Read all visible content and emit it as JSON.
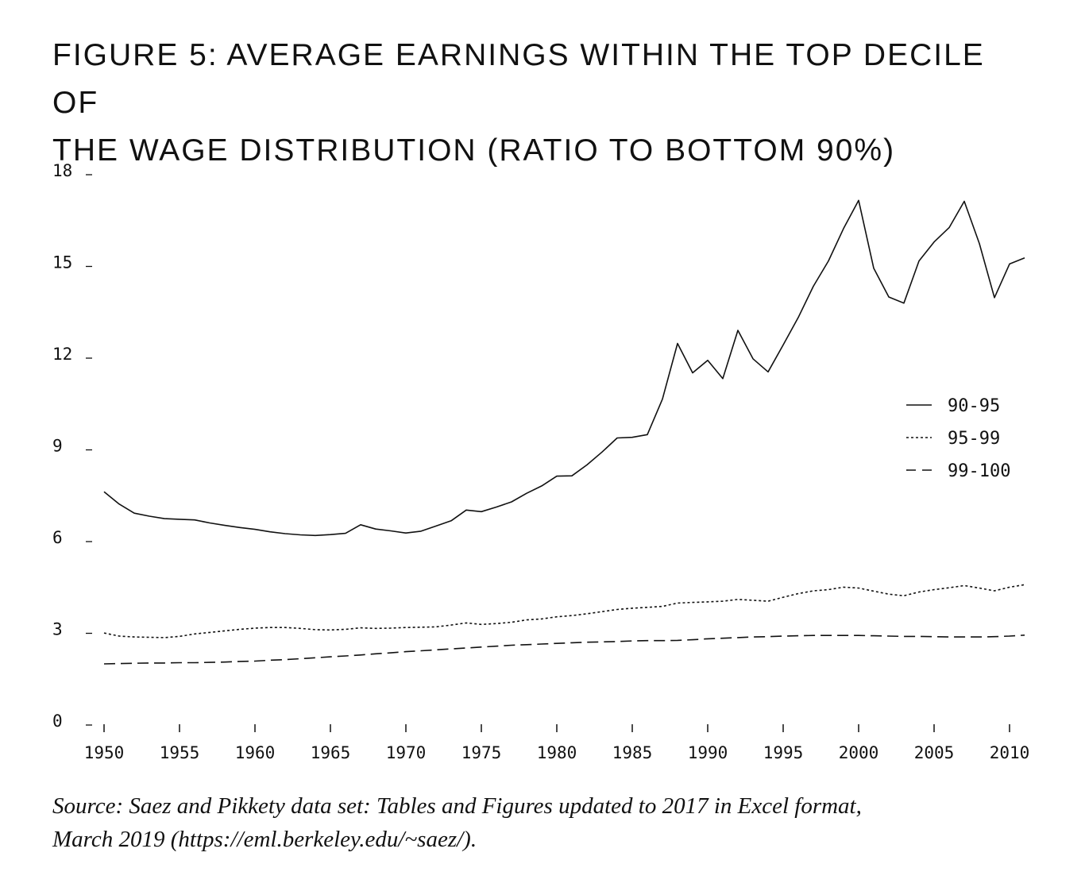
{
  "figure": {
    "title_line1": "FIGURE 5: AVERAGE EARNINGS WITHIN THE TOP DECILE OF",
    "title_line2": "THE WAGE DISTRIBUTION (RATIO TO BOTTOM 90%)"
  },
  "source": {
    "line1": "Source: Saez and Pikkety data set: Tables and Figures updated to 2017 in Excel format,",
    "line2": "March 2019 (https://eml.berkeley.edu/~saez/)."
  },
  "chart_data": {
    "type": "line",
    "title": "FIGURE 5: AVERAGE EARNINGS WITHIN THE TOP DECILE OF THE WAGE DISTRIBUTION (RATIO TO BOTTOM 90%)",
    "xlabel": "",
    "ylabel": "",
    "xlim": [
      1950,
      2011
    ],
    "ylim": [
      0,
      18
    ],
    "x_ticks": [
      1950,
      1955,
      1960,
      1965,
      1970,
      1975,
      1980,
      1985,
      1990,
      1995,
      2000,
      2005,
      2010
    ],
    "y_ticks": [
      0,
      3,
      6,
      9,
      12,
      15,
      18
    ],
    "grid": false,
    "legend_position": "right",
    "x": [
      1950,
      1951,
      1952,
      1953,
      1954,
      1955,
      1956,
      1957,
      1958,
      1959,
      1960,
      1961,
      1962,
      1963,
      1964,
      1965,
      1966,
      1967,
      1968,
      1969,
      1970,
      1971,
      1972,
      1973,
      1974,
      1975,
      1976,
      1977,
      1978,
      1979,
      1980,
      1981,
      1982,
      1983,
      1984,
      1985,
      1986,
      1987,
      1988,
      1989,
      1990,
      1991,
      1992,
      1993,
      1994,
      1995,
      1996,
      1997,
      1998,
      1999,
      2000,
      2001,
      2002,
      2003,
      2004,
      2005,
      2006,
      2007,
      2008,
      2009,
      2010,
      2011
    ],
    "series": [
      {
        "name": "90-95",
        "style": "solid",
        "values": [
          7.5,
          7.1,
          6.8,
          6.7,
          6.62,
          6.6,
          6.58,
          6.48,
          6.4,
          6.33,
          6.27,
          6.19,
          6.13,
          6.09,
          6.07,
          6.1,
          6.14,
          6.42,
          6.28,
          6.22,
          6.15,
          6.21,
          6.38,
          6.55,
          6.9,
          6.85,
          7.0,
          7.17,
          7.45,
          7.69,
          8.01,
          8.02,
          8.38,
          8.8,
          9.26,
          9.28,
          9.37,
          10.53,
          12.35,
          11.39,
          11.8,
          11.2,
          12.78,
          11.85,
          11.42,
          12.3,
          13.2,
          14.22,
          15.05,
          16.11,
          17.03,
          14.81,
          13.87,
          13.67,
          15.05,
          15.67,
          16.14,
          17.0,
          15.62,
          13.85,
          14.95,
          15.15
        ]
      },
      {
        "name": "95-99",
        "style": "dotted",
        "values": [
          2.88,
          2.78,
          2.75,
          2.74,
          2.73,
          2.77,
          2.85,
          2.9,
          2.95,
          3.0,
          3.04,
          3.06,
          3.06,
          3.03,
          2.99,
          2.98,
          3.0,
          3.05,
          3.03,
          3.04,
          3.06,
          3.07,
          3.08,
          3.14,
          3.21,
          3.16,
          3.19,
          3.23,
          3.31,
          3.34,
          3.41,
          3.45,
          3.51,
          3.58,
          3.65,
          3.69,
          3.72,
          3.75,
          3.86,
          3.88,
          3.9,
          3.92,
          3.98,
          3.95,
          3.92,
          4.05,
          4.17,
          4.26,
          4.3,
          4.38,
          4.35,
          4.25,
          4.15,
          4.1,
          4.22,
          4.3,
          4.36,
          4.43,
          4.35,
          4.26,
          4.38,
          4.46
        ]
      },
      {
        "name": "99-100",
        "style": "dashed",
        "values": [
          1.87,
          1.88,
          1.89,
          1.9,
          1.9,
          1.91,
          1.91,
          1.92,
          1.93,
          1.95,
          1.96,
          1.99,
          2.01,
          2.04,
          2.07,
          2.1,
          2.13,
          2.16,
          2.2,
          2.23,
          2.27,
          2.3,
          2.33,
          2.36,
          2.39,
          2.42,
          2.45,
          2.48,
          2.5,
          2.52,
          2.54,
          2.56,
          2.58,
          2.59,
          2.6,
          2.62,
          2.63,
          2.63,
          2.64,
          2.66,
          2.69,
          2.71,
          2.73,
          2.75,
          2.76,
          2.78,
          2.79,
          2.8,
          2.8,
          2.8,
          2.8,
          2.79,
          2.78,
          2.77,
          2.77,
          2.76,
          2.75,
          2.75,
          2.75,
          2.76,
          2.78,
          2.81
        ]
      }
    ]
  }
}
